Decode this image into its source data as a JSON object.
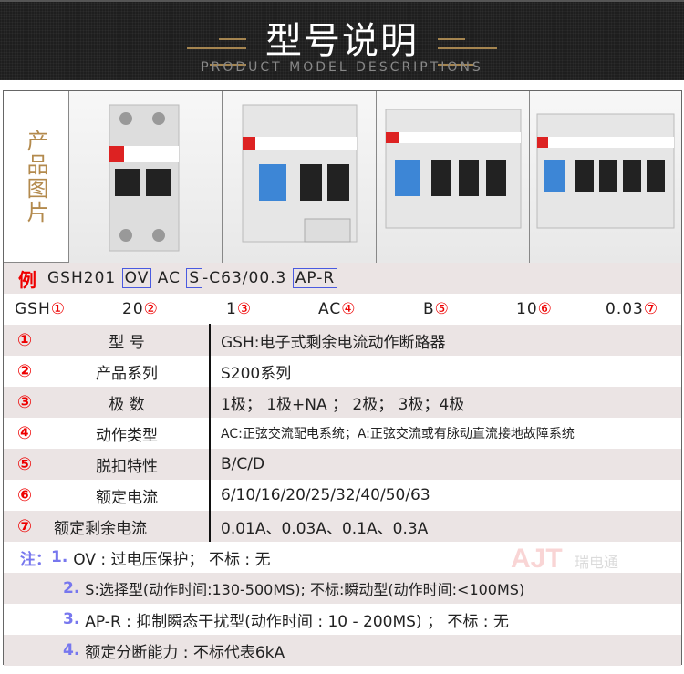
{
  "header": {
    "title": "型号说明",
    "subtitle": "PRODUCT MODEL DESCRIPTIONS"
  },
  "images": {
    "label": "产品图片"
  },
  "example": {
    "prefix": "例",
    "parts": [
      "GSH201",
      "OV",
      "AC",
      "S",
      "-C63/00.3",
      "AP-R"
    ]
  },
  "code": [
    {
      "text": "GSH",
      "n": "①"
    },
    {
      "text": "20",
      "n": "②"
    },
    {
      "text": "1",
      "n": "③"
    },
    {
      "text": "AC",
      "n": "④"
    },
    {
      "text": "B",
      "n": "⑤"
    },
    {
      "text": "10",
      "n": "⑥"
    },
    {
      "text": "0.03",
      "n": "⑦"
    }
  ],
  "rows": [
    {
      "n": "①",
      "label": "型 号",
      "value": "GSH:电子式剩余电流动作断路器"
    },
    {
      "n": "②",
      "label": "产品系列",
      "value": "S200系列"
    },
    {
      "n": "③",
      "label": "极 数",
      "value": "1极； 1极+NA ； 2极； 3极；4极"
    },
    {
      "n": "④",
      "label": "动作类型",
      "value": "AC:正弦交流配电系统；A:正弦交流或有脉动直流接地故障系统"
    },
    {
      "n": "⑤",
      "label": "脱扣特性",
      "value": "B/C/D"
    },
    {
      "n": "⑥",
      "label": "额定电流",
      "value": "6/10/16/20/25/32/40/50/63"
    },
    {
      "n": "⑦",
      "label": "额定剩余电流",
      "value": "0.01A、0.03A、0.1A、0.3A"
    }
  ],
  "notes": {
    "prefix": "注：",
    "items": [
      {
        "n": "1.",
        "text": "OV : 过电压保护；  不标 : 无"
      },
      {
        "n": "2.",
        "text": "S:选择型(动作时间:130-500MS);  不标:瞬动型(动作时间:<100MS)"
      },
      {
        "n": "3.",
        "text": "AP-R : 抑制瞬态干扰型(动作时间 : 10 - 200MS) ； 不标 : 无"
      },
      {
        "n": "4.",
        "text": "额定分断能力 : 不标代表6kA"
      }
    ]
  },
  "watermark": {
    "text": "AJT瑞电通"
  },
  "colors": {
    "accent_red": "#e00000",
    "note_blue": "#7777ee",
    "row_shade": "#ebe4e4",
    "gold": "#a58550"
  }
}
